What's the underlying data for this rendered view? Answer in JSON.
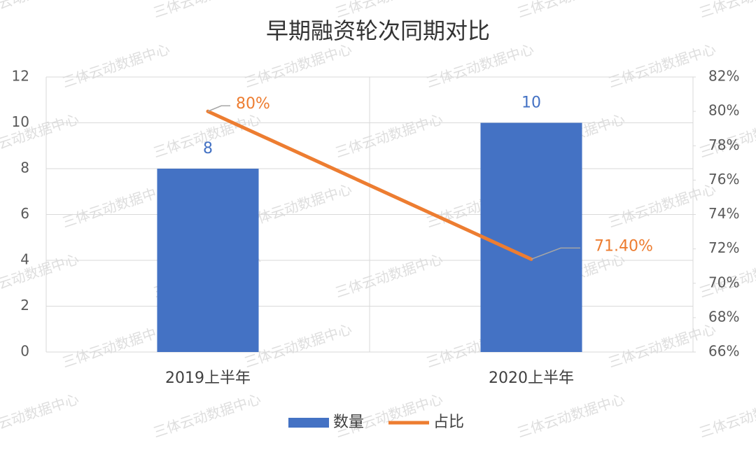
{
  "chart_data": {
    "type": "bar",
    "title": "早期融资轮次同期对比",
    "watermark": "三体云动数据中心",
    "categories": [
      "2019上半年",
      "2020上半年"
    ],
    "series": [
      {
        "name": "数量",
        "color": "#4472c4",
        "values": [
          8,
          10
        ]
      },
      {
        "name": "占比",
        "type": "line",
        "axis": "y2",
        "color": "#ed7d31",
        "values": [
          80,
          71.4
        ],
        "value_labels": [
          "80%",
          "71.40%"
        ]
      }
    ],
    "ylim": [
      0,
      12
    ],
    "yticks": [
      0,
      2,
      4,
      6,
      8,
      10,
      12
    ],
    "y2lim": [
      66,
      82
    ],
    "y2ticks": [
      {
        "value": 66,
        "label": "66%"
      },
      {
        "value": 68,
        "label": "68%"
      },
      {
        "value": 70,
        "label": "70%"
      },
      {
        "value": 72,
        "label": "72%"
      },
      {
        "value": 74,
        "label": "74%"
      },
      {
        "value": 76,
        "label": "76%"
      },
      {
        "value": 78,
        "label": "78%"
      },
      {
        "value": 80,
        "label": "80%"
      },
      {
        "value": 82,
        "label": "82%"
      }
    ],
    "grid": true,
    "legend": "bottom"
  }
}
